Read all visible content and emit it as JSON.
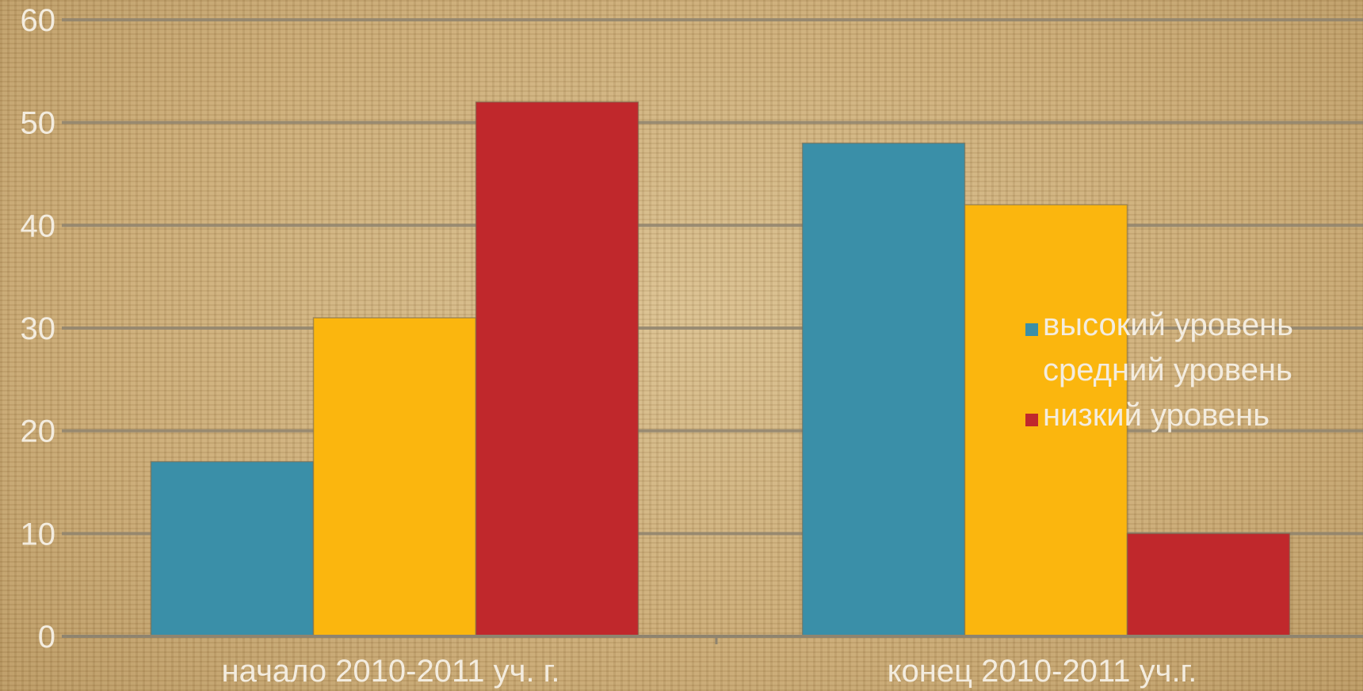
{
  "chart_data": {
    "type": "bar",
    "title": "",
    "xlabel": "",
    "ylabel": "",
    "ylim": [
      0,
      60
    ],
    "yticks": [
      "0",
      "10",
      "20",
      "30",
      "40",
      "50",
      "60"
    ],
    "grid": true,
    "legend": "right",
    "categories": [
      "начало 2010-2011 уч. г.",
      "конец 2010-2011 уч.г."
    ],
    "series": [
      {
        "name": "высокий уровень",
        "values": [
          17,
          48
        ],
        "color": "#3a8fa8"
      },
      {
        "name": "средний уровень",
        "values": [
          31,
          42
        ],
        "color": "#fbb60e"
      },
      {
        "name": "низкий уровень",
        "values": [
          52,
          10
        ],
        "color": "#c0282c"
      }
    ]
  }
}
